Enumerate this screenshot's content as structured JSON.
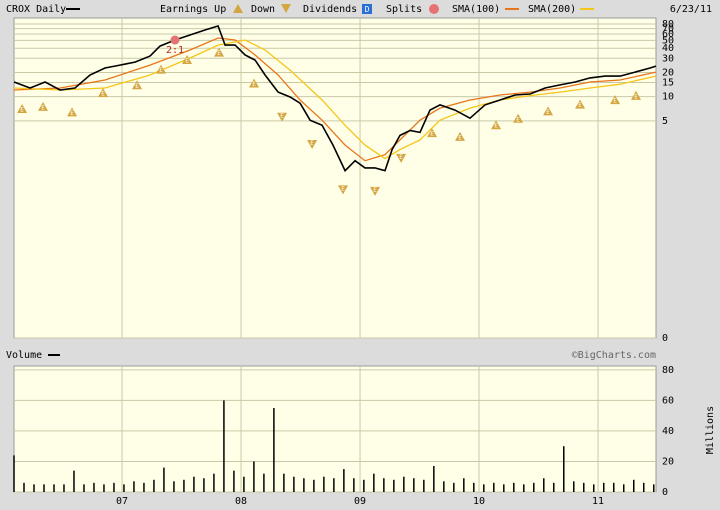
{
  "chart_data": [
    {
      "type": "line",
      "title": "CROX Daily",
      "date": "6/23/11",
      "yscale": "symlog",
      "linthresh": 0.1,
      "ylim": [
        0,
        95
      ],
      "yticks": [
        80,
        70,
        60,
        50,
        40,
        30,
        20,
        15,
        10,
        5,
        0
      ],
      "xlim": [
        2006.092,
        2011.487
      ],
      "grid": true,
      "series": [
        {
          "name": "CROX Daily",
          "color": "#000000",
          "x": [
            2006.092,
            2006.227,
            2006.353,
            2006.479,
            2006.605,
            2006.731,
            2006.857,
            2006.983,
            2007.109,
            2007.235,
            2007.319,
            2007.445,
            2007.571,
            2007.697,
            2007.807,
            2007.866,
            2007.95,
            2008.034,
            2008.118,
            2008.202,
            2008.311,
            2008.412,
            2008.496,
            2008.58,
            2008.681,
            2008.773,
            2008.874,
            2008.958,
            2009.042,
            2009.126,
            2009.21,
            2009.269,
            2009.336,
            2009.42,
            2009.504,
            2009.588,
            2009.672,
            2009.798,
            2009.924,
            2010.05,
            2010.176,
            2010.303,
            2010.429,
            2010.555,
            2010.681,
            2010.807,
            2010.933,
            2011.059,
            2011.185,
            2011.311,
            2011.437,
            2011.487
          ],
          "values": [
            15.2,
            12.8,
            15.2,
            12.1,
            12.8,
            18.6,
            22.7,
            24.7,
            26.9,
            31.9,
            42.5,
            50.6,
            58.4,
            67.4,
            75.5,
            43.8,
            43.8,
            32.9,
            28.5,
            18.6,
            11.4,
            9.9,
            8.3,
            5.1,
            4.4,
            2.5,
            1.2,
            1.6,
            1.3,
            1.3,
            1.2,
            2.2,
            3.3,
            3.8,
            3.6,
            6.8,
            7.9,
            6.8,
            5.4,
            7.9,
            9.1,
            10.5,
            10.8,
            12.8,
            14.0,
            15.2,
            17.1,
            18.0,
            18.0,
            20.2,
            22.7,
            24.0
          ]
        },
        {
          "name": "SMA(100)",
          "color": "#e8751a",
          "x": [
            2006.092,
            2006.479,
            2006.857,
            2007.235,
            2007.571,
            2007.807,
            2007.95,
            2008.118,
            2008.311,
            2008.496,
            2008.681,
            2008.874,
            2009.042,
            2009.21,
            2009.336,
            2009.504,
            2009.672,
            2009.924,
            2010.176,
            2010.429,
            2010.681,
            2010.933,
            2011.185,
            2011.487
          ],
          "values": [
            12.1,
            12.8,
            16.1,
            24.7,
            38.0,
            53.6,
            50.6,
            32.9,
            18.6,
            9.1,
            5.1,
            2.5,
            1.6,
            1.9,
            2.9,
            5.1,
            7.2,
            9.1,
            10.5,
            11.4,
            12.8,
            15.2,
            16.1,
            20.2
          ]
        },
        {
          "name": "SMA(200)",
          "color": "#f5c518",
          "x": [
            2006.092,
            2006.479,
            2006.857,
            2007.235,
            2007.571,
            2007.807,
            2008.034,
            2008.202,
            2008.412,
            2008.681,
            2008.874,
            2009.042,
            2009.21,
            2009.336,
            2009.504,
            2009.672,
            2009.924,
            2010.176,
            2010.429,
            2010.681,
            2010.933,
            2011.185,
            2011.487
          ],
          "values": [
            12.8,
            12.1,
            12.8,
            18.6,
            30.2,
            43.8,
            50.6,
            38.0,
            21.4,
            9.1,
            4.4,
            2.5,
            1.7,
            2.2,
            2.9,
            5.1,
            7.2,
            9.1,
            10.3,
            11.4,
            12.8,
            14.3,
            18.0
          ]
        }
      ],
      "earnings": {
        "name_up": "Earnings Up",
        "name_down": "Down",
        "label": "E",
        "x": [
          2006.16,
          2006.336,
          2006.58,
          2006.84,
          2007.126,
          2007.328,
          2007.546,
          2007.815,
          2008.109,
          2008.345,
          2008.597,
          2008.857,
          2009.126,
          2009.345,
          2009.605,
          2009.84,
          2010.143,
          2010.328,
          2010.58,
          2010.849,
          2011.143,
          2011.319
        ],
        "direction": [
          "up",
          "up",
          "up",
          "up",
          "up",
          "up",
          "up",
          "up",
          "up",
          "down",
          "down",
          "down",
          "down",
          "down",
          "up",
          "up",
          "up",
          "up",
          "up",
          "up",
          "up",
          "up"
        ]
      },
      "dividends": {
        "name": "Dividends",
        "icon_label": "D"
      },
      "splits": {
        "name": "Splits",
        "x": [
          2007.445
        ],
        "labels": [
          "2:1"
        ]
      }
    },
    {
      "type": "bar",
      "title": "Volume",
      "source": "©BigCharts.com",
      "y_label": "Millions",
      "color": "#000000",
      "ylim": [
        0,
        82.5
      ],
      "yticks": [
        80,
        60,
        40,
        20,
        0
      ],
      "xlim": [
        2006.092,
        2011.487
      ],
      "xticks": [
        {
          "value": 2007,
          "label": "07"
        },
        {
          "value": 2008,
          "label": "08"
        },
        {
          "value": 2009,
          "label": "09"
        },
        {
          "value": 2010,
          "label": "10"
        },
        {
          "value": 2011,
          "label": "11"
        }
      ],
      "grid": true,
      "x": [
        2006.092,
        2006.176,
        2006.26,
        2006.344,
        2006.428,
        2006.512,
        2006.596,
        2006.68,
        2006.764,
        2006.848,
        2006.932,
        2007.016,
        2007.1,
        2007.184,
        2007.268,
        2007.352,
        2007.436,
        2007.52,
        2007.604,
        2007.688,
        2007.772,
        2007.856,
        2007.94,
        2008.024,
        2008.108,
        2008.192,
        2008.276,
        2008.36,
        2008.444,
        2008.528,
        2008.612,
        2008.696,
        2008.78,
        2008.864,
        2008.948,
        2009.032,
        2009.116,
        2009.2,
        2009.284,
        2009.368,
        2009.452,
        2009.536,
        2009.62,
        2009.704,
        2009.788,
        2009.872,
        2009.956,
        2010.04,
        2010.124,
        2010.208,
        2010.292,
        2010.376,
        2010.46,
        2010.544,
        2010.628,
        2010.712,
        2010.796,
        2010.88,
        2010.964,
        2011.048,
        2011.132,
        2011.216,
        2011.3,
        2011.384,
        2011.468
      ],
      "values": [
        24,
        6,
        5,
        5,
        5,
        5,
        14,
        5,
        6,
        5,
        6,
        5,
        7,
        6,
        8,
        16,
        7,
        8,
        10,
        9,
        12,
        60,
        14,
        10,
        20,
        12,
        55,
        12,
        10,
        9,
        8,
        10,
        9,
        15,
        9,
        8,
        12,
        9,
        8,
        10,
        9,
        8,
        17,
        7,
        6,
        9,
        6,
        5,
        6,
        5,
        6,
        5,
        6,
        9,
        6,
        30,
        7,
        6,
        5,
        6,
        6,
        5,
        8,
        6,
        5
      ]
    }
  ]
}
